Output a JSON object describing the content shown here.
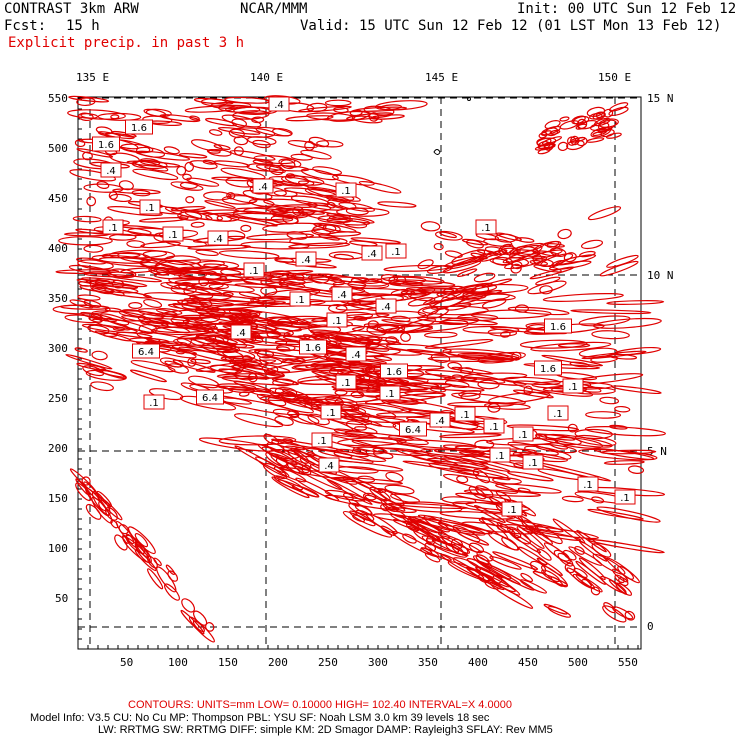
{
  "header": {
    "model": "CONTRAST   3km ARW",
    "org": "NCAR/MMM",
    "init": "Init: 00 UTC Sun 12 Feb 12",
    "fcst_label": "Fcst:",
    "fcst_value": "15 h",
    "valid": "Valid: 15 UTC Sun 12 Feb 12 (01 LST Mon 13 Feb 12)",
    "field": "Explicit precip. in past 3 h"
  },
  "map": {
    "lon_labels": [
      "135 E",
      "140 E",
      "145 E",
      "150 E"
    ],
    "lat_labels": [
      "15 N",
      "10 N",
      "5 N",
      "0"
    ],
    "y_ticks": [
      "550",
      "500",
      "450",
      "400",
      "350",
      "300",
      "250",
      "200",
      "150",
      "100",
      "50"
    ],
    "x_ticks": [
      "50",
      "100",
      "150",
      "200",
      "250",
      "300",
      "350",
      "400",
      "450",
      "500",
      "550"
    ],
    "contour_color": "#e00000",
    "contour_labels": [
      ".4",
      "1.6",
      "1.6",
      ".4",
      ".4",
      ".1",
      ".1",
      ".1",
      ".1",
      ".4",
      ".4",
      ".4",
      ".1",
      ".1",
      ".1",
      ".1",
      ".4",
      ".4",
      ".1",
      "1.6",
      ".4",
      "6.4",
      "1.6",
      ".4",
      "1.6",
      ".1",
      ".1",
      ".1",
      "6.4",
      ".1",
      ".4",
      ".1",
      ".1",
      "6.4",
      ".1",
      ".1",
      ".1",
      ".4",
      ".1",
      ".1",
      "1.6",
      ".1",
      ".1",
      ".1",
      ".1"
    ]
  },
  "footer": {
    "contours": "CONTOURS:  UNITS=mm  LOW= 0.10000     HIGH=  102.40     INTERVAL=X  4.0000",
    "model_info_1": "Model Info: V3.5      CU: No Cu      MP: Thompson     PBL: YSU       SF: Noah LSM      3.0 km   39 levels    18 sec",
    "model_info_2": "LW: RRTMG    SW: RRTMG   DIFF: simple KM: 2D Smagor DAMP: Rayleigh3   SFLAY: Rev MM5"
  }
}
